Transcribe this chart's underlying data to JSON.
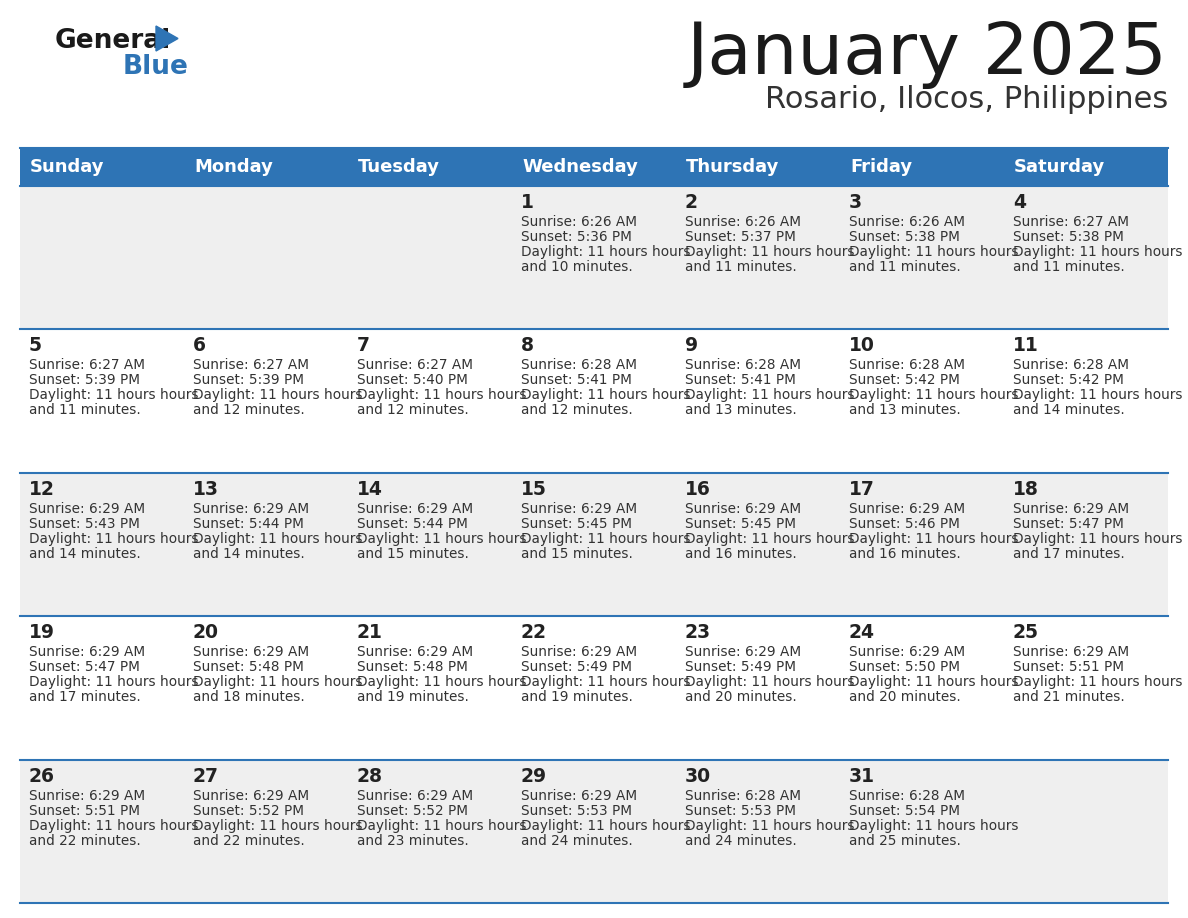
{
  "title": "January 2025",
  "subtitle": "Rosario, Ilocos, Philippines",
  "days_of_week": [
    "Sunday",
    "Monday",
    "Tuesday",
    "Wednesday",
    "Thursday",
    "Friday",
    "Saturday"
  ],
  "header_bg": "#2E74B5",
  "header_text": "#FFFFFF",
  "row_bg_odd": "#EFEFEF",
  "row_bg_even": "#FFFFFF",
  "row_border": "#2E74B5",
  "day_number_color": "#222222",
  "cell_text_color": "#333333",
  "title_color": "#1a1a1a",
  "subtitle_color": "#333333",
  "logo_general_color": "#1a1a1a",
  "logo_blue_color": "#2E74B5",
  "logo_triangle_color": "#2E74B5",
  "calendar_data": [
    [
      null,
      null,
      null,
      {
        "day": 1,
        "sunrise": "6:26 AM",
        "sunset": "5:36 PM",
        "daylight": "11 hours and 10 minutes."
      },
      {
        "day": 2,
        "sunrise": "6:26 AM",
        "sunset": "5:37 PM",
        "daylight": "11 hours and 11 minutes."
      },
      {
        "day": 3,
        "sunrise": "6:26 AM",
        "sunset": "5:38 PM",
        "daylight": "11 hours and 11 minutes."
      },
      {
        "day": 4,
        "sunrise": "6:27 AM",
        "sunset": "5:38 PM",
        "daylight": "11 hours and 11 minutes."
      }
    ],
    [
      {
        "day": 5,
        "sunrise": "6:27 AM",
        "sunset": "5:39 PM",
        "daylight": "11 hours and 11 minutes."
      },
      {
        "day": 6,
        "sunrise": "6:27 AM",
        "sunset": "5:39 PM",
        "daylight": "11 hours and 12 minutes."
      },
      {
        "day": 7,
        "sunrise": "6:27 AM",
        "sunset": "5:40 PM",
        "daylight": "11 hours and 12 minutes."
      },
      {
        "day": 8,
        "sunrise": "6:28 AM",
        "sunset": "5:41 PM",
        "daylight": "11 hours and 12 minutes."
      },
      {
        "day": 9,
        "sunrise": "6:28 AM",
        "sunset": "5:41 PM",
        "daylight": "11 hours and 13 minutes."
      },
      {
        "day": 10,
        "sunrise": "6:28 AM",
        "sunset": "5:42 PM",
        "daylight": "11 hours and 13 minutes."
      },
      {
        "day": 11,
        "sunrise": "6:28 AM",
        "sunset": "5:42 PM",
        "daylight": "11 hours and 14 minutes."
      }
    ],
    [
      {
        "day": 12,
        "sunrise": "6:29 AM",
        "sunset": "5:43 PM",
        "daylight": "11 hours and 14 minutes."
      },
      {
        "day": 13,
        "sunrise": "6:29 AM",
        "sunset": "5:44 PM",
        "daylight": "11 hours and 14 minutes."
      },
      {
        "day": 14,
        "sunrise": "6:29 AM",
        "sunset": "5:44 PM",
        "daylight": "11 hours and 15 minutes."
      },
      {
        "day": 15,
        "sunrise": "6:29 AM",
        "sunset": "5:45 PM",
        "daylight": "11 hours and 15 minutes."
      },
      {
        "day": 16,
        "sunrise": "6:29 AM",
        "sunset": "5:45 PM",
        "daylight": "11 hours and 16 minutes."
      },
      {
        "day": 17,
        "sunrise": "6:29 AM",
        "sunset": "5:46 PM",
        "daylight": "11 hours and 16 minutes."
      },
      {
        "day": 18,
        "sunrise": "6:29 AM",
        "sunset": "5:47 PM",
        "daylight": "11 hours and 17 minutes."
      }
    ],
    [
      {
        "day": 19,
        "sunrise": "6:29 AM",
        "sunset": "5:47 PM",
        "daylight": "11 hours and 17 minutes."
      },
      {
        "day": 20,
        "sunrise": "6:29 AM",
        "sunset": "5:48 PM",
        "daylight": "11 hours and 18 minutes."
      },
      {
        "day": 21,
        "sunrise": "6:29 AM",
        "sunset": "5:48 PM",
        "daylight": "11 hours and 19 minutes."
      },
      {
        "day": 22,
        "sunrise": "6:29 AM",
        "sunset": "5:49 PM",
        "daylight": "11 hours and 19 minutes."
      },
      {
        "day": 23,
        "sunrise": "6:29 AM",
        "sunset": "5:49 PM",
        "daylight": "11 hours and 20 minutes."
      },
      {
        "day": 24,
        "sunrise": "6:29 AM",
        "sunset": "5:50 PM",
        "daylight": "11 hours and 20 minutes."
      },
      {
        "day": 25,
        "sunrise": "6:29 AM",
        "sunset": "5:51 PM",
        "daylight": "11 hours and 21 minutes."
      }
    ],
    [
      {
        "day": 26,
        "sunrise": "6:29 AM",
        "sunset": "5:51 PM",
        "daylight": "11 hours and 22 minutes."
      },
      {
        "day": 27,
        "sunrise": "6:29 AM",
        "sunset": "5:52 PM",
        "daylight": "11 hours and 22 minutes."
      },
      {
        "day": 28,
        "sunrise": "6:29 AM",
        "sunset": "5:52 PM",
        "daylight": "11 hours and 23 minutes."
      },
      {
        "day": 29,
        "sunrise": "6:29 AM",
        "sunset": "5:53 PM",
        "daylight": "11 hours and 24 minutes."
      },
      {
        "day": 30,
        "sunrise": "6:28 AM",
        "sunset": "5:53 PM",
        "daylight": "11 hours and 24 minutes."
      },
      {
        "day": 31,
        "sunrise": "6:28 AM",
        "sunset": "5:54 PM",
        "daylight": "11 hours and 25 minutes."
      },
      null
    ]
  ],
  "fig_width": 11.88,
  "fig_height": 9.18,
  "dpi": 100
}
